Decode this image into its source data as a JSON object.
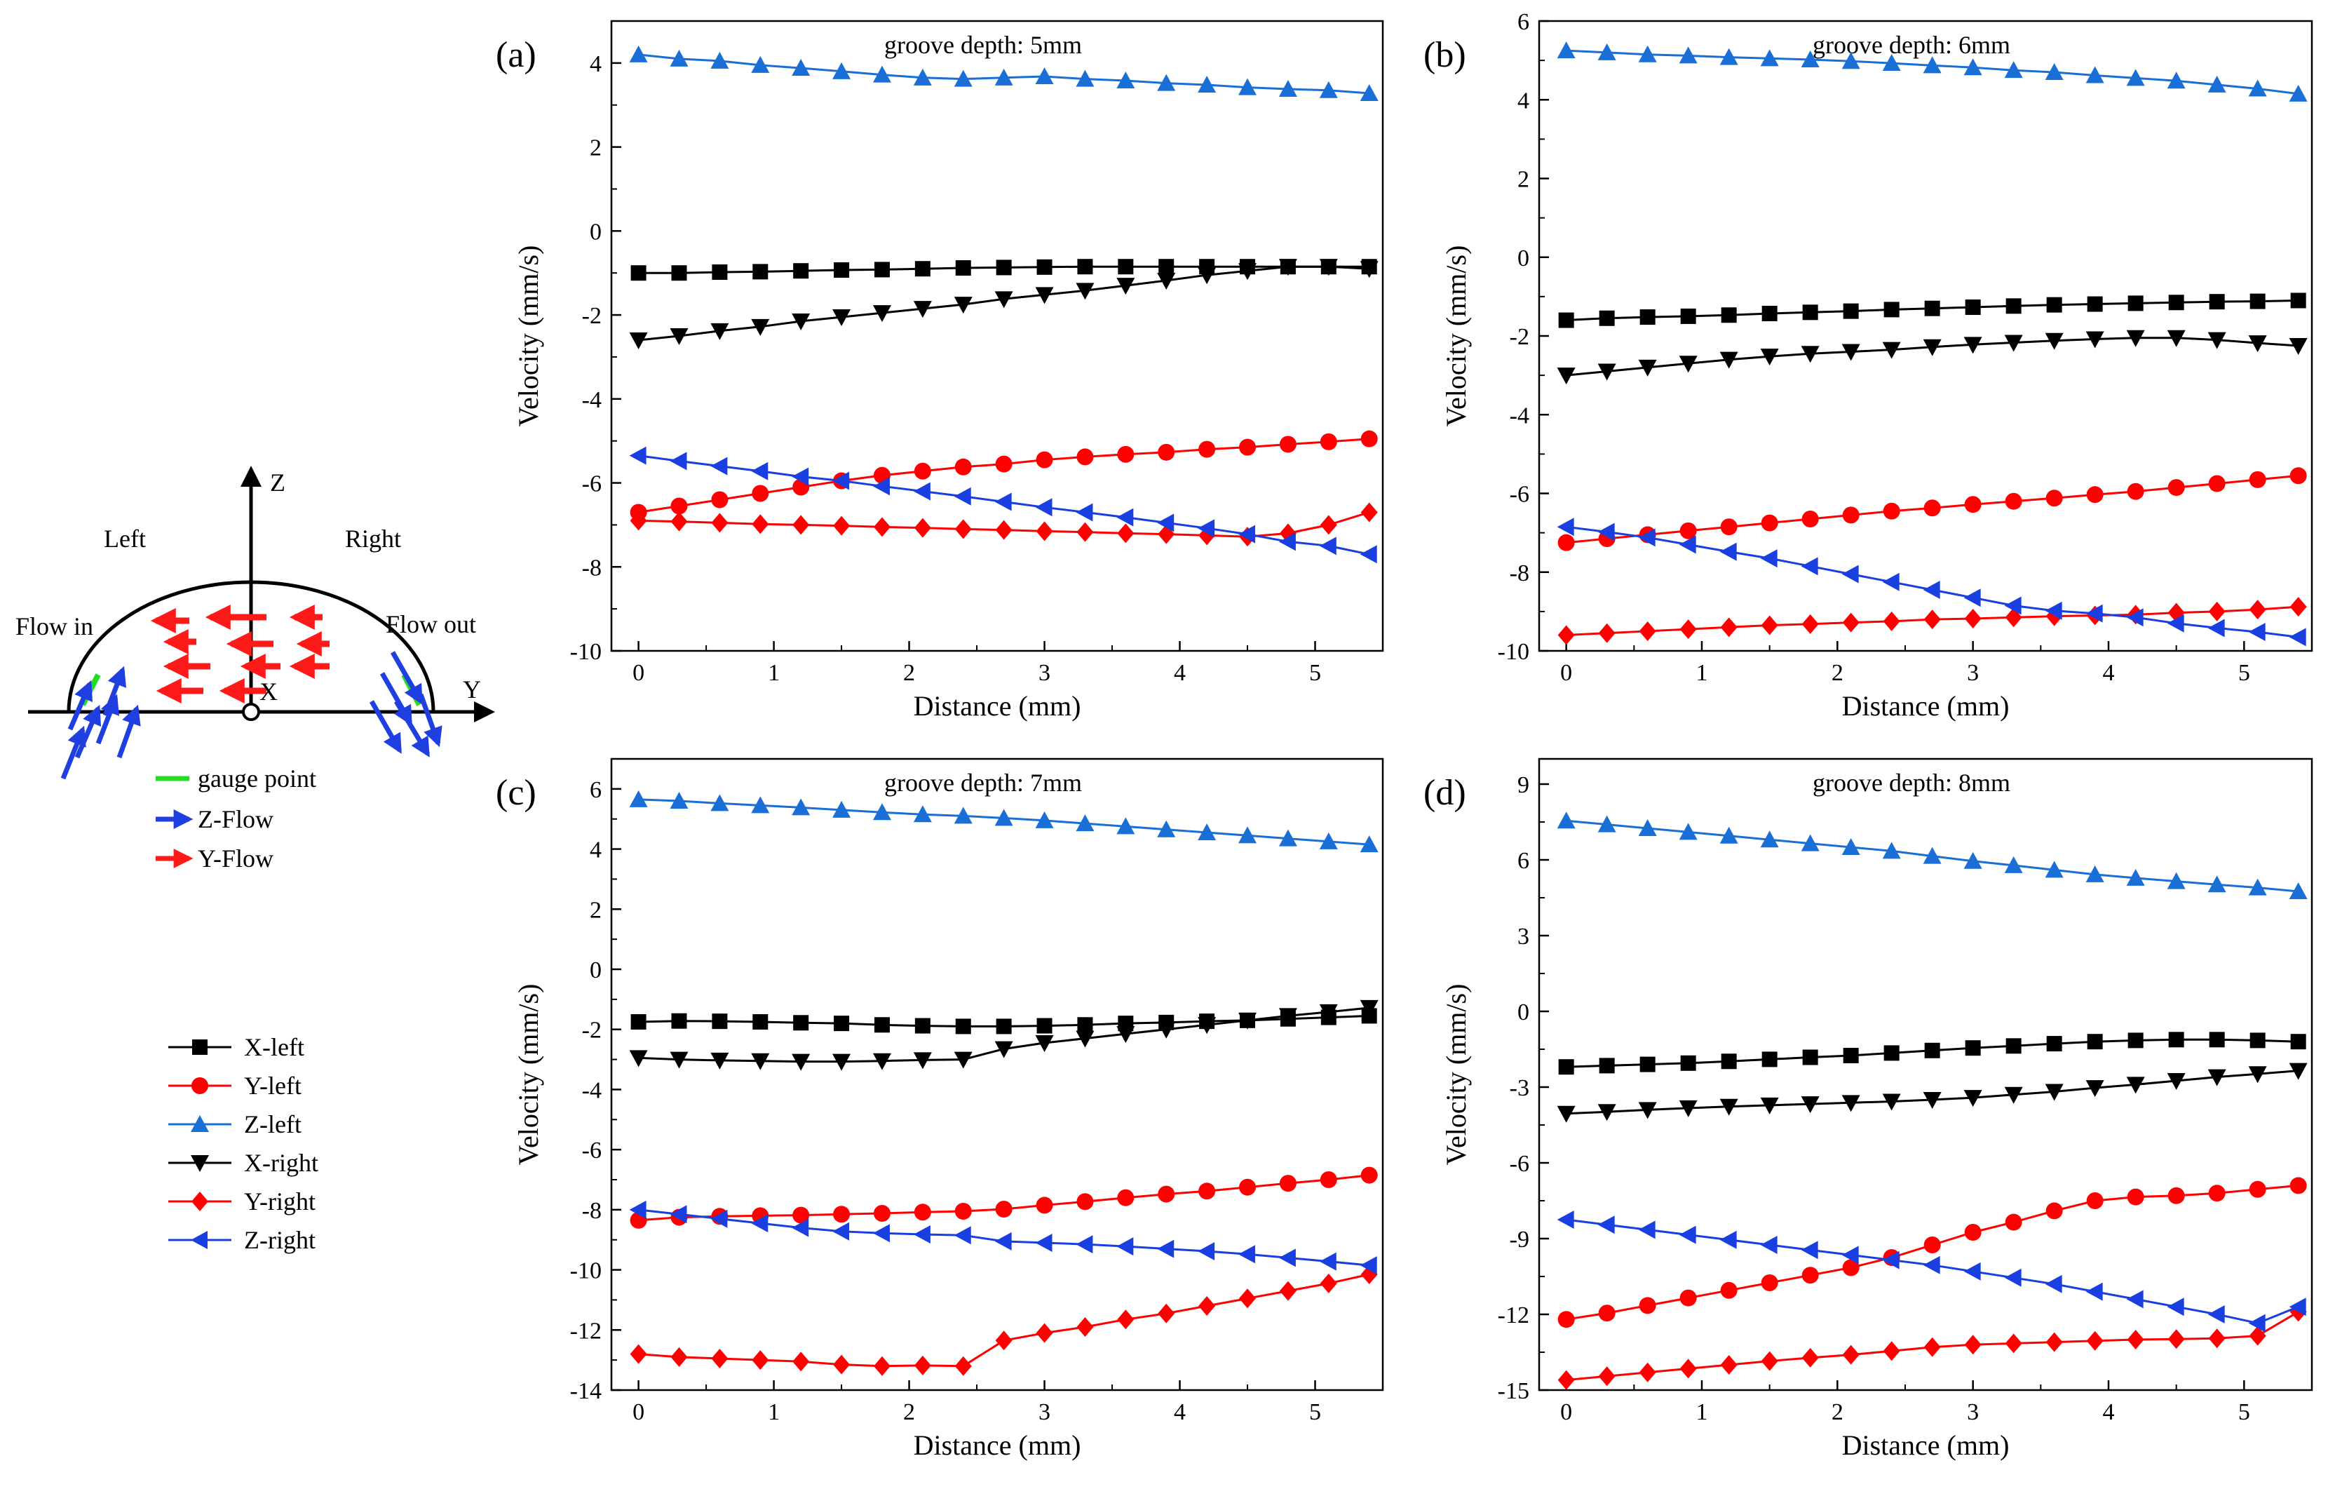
{
  "diagram": {
    "z_axis": "Z",
    "y_axis": "Y",
    "x_axis": "X",
    "left": "Left",
    "right": "Right",
    "flow_in": "Flow in",
    "flow_out": "Flow out",
    "legend": [
      {
        "label": "gauge point",
        "color": "#22dd22"
      },
      {
        "label": "Z-Flow",
        "color": "#1f3fe0"
      },
      {
        "label": "Y-Flow",
        "color": "#ff1a1a"
      }
    ]
  },
  "series_legend": [
    {
      "label": "X-left",
      "color": "#000000",
      "marker": "square"
    },
    {
      "label": "Y-left",
      "color": "#ff0000",
      "marker": "circle"
    },
    {
      "label": "Z-left",
      "color": "#1a6fd6",
      "marker": "triangle-up"
    },
    {
      "label": "X-right",
      "color": "#000000",
      "marker": "triangle-down"
    },
    {
      "label": "Y-right",
      "color": "#ff0000",
      "marker": "diamond"
    },
    {
      "label": "Z-right",
      "color": "#1a3fe0",
      "marker": "triangle-left"
    }
  ],
  "chart_data": [
    {
      "type": "line",
      "panel_label": "(a)",
      "title": "groove depth: 5mm",
      "xlabel": "Distance (mm)",
      "ylabel": "Velocity (mm/s)",
      "xlim": [
        -0.2,
        5.5
      ],
      "ylim": [
        -10,
        5
      ],
      "xticks": [
        0,
        1,
        2,
        3,
        4,
        5
      ],
      "yticks": [
        4,
        2,
        0,
        -2,
        -4,
        -6,
        -8,
        -10
      ],
      "x": [
        0,
        0.3,
        0.6,
        0.9,
        1.2,
        1.5,
        1.8,
        2.1,
        2.4,
        2.7,
        3.0,
        3.3,
        3.6,
        3.9,
        4.2,
        4.5,
        4.8,
        5.1,
        5.4
      ],
      "series": [
        {
          "name": "X-left",
          "values": [
            -1.0,
            -1.0,
            -0.98,
            -0.97,
            -0.95,
            -0.93,
            -0.92,
            -0.9,
            -0.88,
            -0.87,
            -0.86,
            -0.85,
            -0.85,
            -0.85,
            -0.85,
            -0.85,
            -0.85,
            -0.85,
            -0.85
          ]
        },
        {
          "name": "Y-left",
          "values": [
            -6.7,
            -6.55,
            -6.4,
            -6.25,
            -6.1,
            -5.95,
            -5.82,
            -5.72,
            -5.62,
            -5.55,
            -5.45,
            -5.38,
            -5.32,
            -5.27,
            -5.2,
            -5.15,
            -5.08,
            -5.02,
            -4.95
          ]
        },
        {
          "name": "Z-left",
          "values": [
            4.2,
            4.1,
            4.05,
            3.95,
            3.88,
            3.8,
            3.72,
            3.65,
            3.62,
            3.65,
            3.68,
            3.62,
            3.58,
            3.52,
            3.48,
            3.42,
            3.38,
            3.35,
            3.28
          ]
        },
        {
          "name": "X-right",
          "values": [
            -2.6,
            -2.5,
            -2.38,
            -2.28,
            -2.15,
            -2.05,
            -1.95,
            -1.85,
            -1.75,
            -1.62,
            -1.52,
            -1.42,
            -1.3,
            -1.18,
            -1.05,
            -0.95,
            -0.85,
            -0.85,
            -0.9
          ]
        },
        {
          "name": "Y-right",
          "values": [
            -6.9,
            -6.92,
            -6.95,
            -6.98,
            -7.0,
            -7.02,
            -7.05,
            -7.07,
            -7.1,
            -7.12,
            -7.15,
            -7.17,
            -7.2,
            -7.22,
            -7.25,
            -7.28,
            -7.2,
            -7.0,
            -6.7
          ]
        },
        {
          "name": "Z-right",
          "values": [
            -5.35,
            -5.48,
            -5.6,
            -5.72,
            -5.85,
            -5.95,
            -6.08,
            -6.2,
            -6.32,
            -6.45,
            -6.58,
            -6.7,
            -6.82,
            -6.95,
            -7.08,
            -7.22,
            -7.4,
            -7.5,
            -7.7
          ]
        }
      ]
    },
    {
      "type": "line",
      "panel_label": "(b)",
      "title": "groove depth: 6mm",
      "xlabel": "Distance (mm)",
      "ylabel": "Velocity (mm/s)",
      "xlim": [
        -0.2,
        5.5
      ],
      "ylim": [
        -10,
        6
      ],
      "xticks": [
        0,
        1,
        2,
        3,
        4,
        5
      ],
      "yticks": [
        6,
        4,
        2,
        0,
        -2,
        -4,
        -6,
        -8,
        -10
      ],
      "x": [
        0,
        0.3,
        0.6,
        0.9,
        1.2,
        1.5,
        1.8,
        2.1,
        2.4,
        2.7,
        3.0,
        3.3,
        3.6,
        3.9,
        4.2,
        4.5,
        4.8,
        5.1,
        5.4
      ],
      "series": [
        {
          "name": "X-left",
          "values": [
            -1.6,
            -1.55,
            -1.52,
            -1.5,
            -1.47,
            -1.43,
            -1.4,
            -1.37,
            -1.33,
            -1.3,
            -1.27,
            -1.24,
            -1.21,
            -1.19,
            -1.17,
            -1.15,
            -1.13,
            -1.12,
            -1.1
          ]
        },
        {
          "name": "Y-left",
          "values": [
            -7.25,
            -7.15,
            -7.05,
            -6.95,
            -6.85,
            -6.75,
            -6.65,
            -6.55,
            -6.45,
            -6.37,
            -6.28,
            -6.2,
            -6.12,
            -6.03,
            -5.95,
            -5.85,
            -5.75,
            -5.65,
            -5.55
          ]
        },
        {
          "name": "Z-left",
          "values": [
            5.25,
            5.2,
            5.15,
            5.12,
            5.08,
            5.05,
            5.02,
            4.98,
            4.93,
            4.87,
            4.82,
            4.75,
            4.7,
            4.62,
            4.55,
            4.48,
            4.38,
            4.28,
            4.15
          ]
        },
        {
          "name": "X-right",
          "values": [
            -3.0,
            -2.9,
            -2.8,
            -2.7,
            -2.6,
            -2.52,
            -2.45,
            -2.4,
            -2.35,
            -2.28,
            -2.22,
            -2.17,
            -2.12,
            -2.08,
            -2.05,
            -2.05,
            -2.1,
            -2.18,
            -2.25
          ]
        },
        {
          "name": "Y-right",
          "values": [
            -9.6,
            -9.55,
            -9.5,
            -9.45,
            -9.4,
            -9.35,
            -9.32,
            -9.28,
            -9.25,
            -9.2,
            -9.18,
            -9.15,
            -9.12,
            -9.1,
            -9.08,
            -9.03,
            -9.0,
            -8.95,
            -8.88
          ]
        },
        {
          "name": "Z-right",
          "values": [
            -6.85,
            -6.98,
            -7.12,
            -7.3,
            -7.48,
            -7.65,
            -7.85,
            -8.05,
            -8.25,
            -8.45,
            -8.65,
            -8.85,
            -8.98,
            -9.05,
            -9.15,
            -9.3,
            -9.42,
            -9.52,
            -9.65
          ]
        }
      ]
    },
    {
      "type": "line",
      "panel_label": "(c)",
      "title": "groove depth: 7mm",
      "xlabel": "Distance (mm)",
      "ylabel": "Velocity (mm/s)",
      "xlim": [
        -0.2,
        5.5
      ],
      "ylim": [
        -14,
        7
      ],
      "xticks": [
        0,
        1,
        2,
        3,
        4,
        5
      ],
      "yticks": [
        6,
        4,
        2,
        0,
        -2,
        -4,
        -6,
        -8,
        -10,
        -12,
        -14
      ],
      "x": [
        0,
        0.3,
        0.6,
        0.9,
        1.2,
        1.5,
        1.8,
        2.1,
        2.4,
        2.7,
        3.0,
        3.3,
        3.6,
        3.9,
        4.2,
        4.5,
        4.8,
        5.1,
        5.4
      ],
      "series": [
        {
          "name": "X-left",
          "values": [
            -1.75,
            -1.72,
            -1.73,
            -1.75,
            -1.78,
            -1.8,
            -1.85,
            -1.88,
            -1.9,
            -1.9,
            -1.88,
            -1.85,
            -1.8,
            -1.77,
            -1.73,
            -1.7,
            -1.65,
            -1.6,
            -1.55
          ]
        },
        {
          "name": "Y-left",
          "values": [
            -8.35,
            -8.25,
            -8.22,
            -8.2,
            -8.18,
            -8.15,
            -8.12,
            -8.08,
            -8.05,
            -7.98,
            -7.85,
            -7.73,
            -7.6,
            -7.48,
            -7.38,
            -7.25,
            -7.12,
            -7.0,
            -6.85
          ]
        },
        {
          "name": "Z-left",
          "values": [
            5.65,
            5.6,
            5.52,
            5.45,
            5.38,
            5.3,
            5.22,
            5.15,
            5.1,
            5.03,
            4.95,
            4.85,
            4.75,
            4.65,
            4.55,
            4.45,
            4.35,
            4.25,
            4.15
          ]
        },
        {
          "name": "X-right",
          "values": [
            -2.95,
            -3.0,
            -3.03,
            -3.05,
            -3.07,
            -3.07,
            -3.05,
            -3.02,
            -3.0,
            -2.65,
            -2.45,
            -2.3,
            -2.15,
            -2.0,
            -1.85,
            -1.7,
            -1.55,
            -1.42,
            -1.28
          ]
        },
        {
          "name": "Y-right",
          "values": [
            -12.8,
            -12.9,
            -12.95,
            -13.0,
            -13.05,
            -13.15,
            -13.2,
            -13.18,
            -13.2,
            -12.35,
            -12.1,
            -11.9,
            -11.65,
            -11.45,
            -11.2,
            -10.95,
            -10.7,
            -10.45,
            -10.15
          ]
        },
        {
          "name": "Z-right",
          "values": [
            -8.0,
            -8.15,
            -8.3,
            -8.45,
            -8.6,
            -8.72,
            -8.78,
            -8.82,
            -8.85,
            -9.05,
            -9.1,
            -9.15,
            -9.22,
            -9.3,
            -9.38,
            -9.48,
            -9.6,
            -9.72,
            -9.85
          ]
        }
      ]
    },
    {
      "type": "line",
      "panel_label": "(d)",
      "title": "groove depth: 8mm",
      "xlabel": "Distance (mm)",
      "ylabel": "Velocity (mm/s)",
      "xlim": [
        -0.2,
        5.5
      ],
      "ylim": [
        -15,
        10
      ],
      "xticks": [
        0,
        1,
        2,
        3,
        4,
        5
      ],
      "yticks": [
        9,
        6,
        3,
        0,
        -3,
        -6,
        -9,
        -12,
        -15
      ],
      "x": [
        0,
        0.3,
        0.6,
        0.9,
        1.2,
        1.5,
        1.8,
        2.1,
        2.4,
        2.7,
        3.0,
        3.3,
        3.6,
        3.9,
        4.2,
        4.5,
        4.8,
        5.1,
        5.4
      ],
      "series": [
        {
          "name": "X-left",
          "values": [
            -2.2,
            -2.15,
            -2.1,
            -2.05,
            -1.98,
            -1.9,
            -1.82,
            -1.75,
            -1.65,
            -1.55,
            -1.45,
            -1.37,
            -1.28,
            -1.2,
            -1.15,
            -1.12,
            -1.12,
            -1.15,
            -1.2
          ]
        },
        {
          "name": "Y-left",
          "values": [
            -12.2,
            -11.95,
            -11.65,
            -11.35,
            -11.05,
            -10.75,
            -10.45,
            -10.15,
            -9.75,
            -9.25,
            -8.75,
            -8.35,
            -7.9,
            -7.5,
            -7.35,
            -7.3,
            -7.2,
            -7.05,
            -6.9
          ]
        },
        {
          "name": "Z-left",
          "values": [
            7.55,
            7.4,
            7.25,
            7.1,
            6.95,
            6.8,
            6.65,
            6.5,
            6.35,
            6.15,
            5.95,
            5.78,
            5.6,
            5.42,
            5.28,
            5.15,
            5.02,
            4.9,
            4.75
          ]
        },
        {
          "name": "X-right",
          "values": [
            -4.05,
            -3.98,
            -3.9,
            -3.83,
            -3.77,
            -3.72,
            -3.67,
            -3.62,
            -3.57,
            -3.5,
            -3.42,
            -3.3,
            -3.18,
            -3.03,
            -2.9,
            -2.75,
            -2.6,
            -2.48,
            -2.35
          ]
        },
        {
          "name": "Y-right",
          "values": [
            -14.6,
            -14.45,
            -14.3,
            -14.15,
            -14.0,
            -13.85,
            -13.72,
            -13.6,
            -13.45,
            -13.3,
            -13.2,
            -13.15,
            -13.1,
            -13.05,
            -13.0,
            -12.98,
            -12.95,
            -12.85,
            -11.9
          ]
        },
        {
          "name": "Z-right",
          "values": [
            -8.25,
            -8.45,
            -8.65,
            -8.85,
            -9.05,
            -9.25,
            -9.45,
            -9.65,
            -9.85,
            -10.05,
            -10.3,
            -10.55,
            -10.8,
            -11.1,
            -11.4,
            -11.7,
            -12.0,
            -12.35,
            -11.7
          ]
        }
      ]
    }
  ]
}
